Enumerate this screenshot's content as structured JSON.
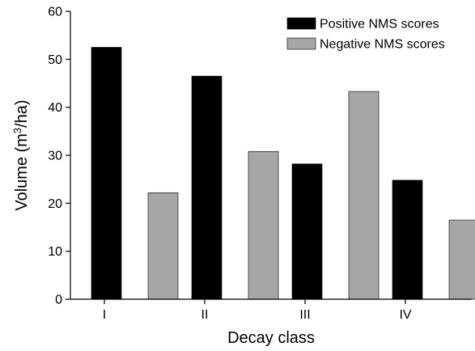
{
  "chart_data": {
    "type": "bar",
    "title": "",
    "xlabel": "Decay class",
    "ylabel_main": "Volume (m",
    "ylabel_sup": "3",
    "ylabel_tail": "/ha)",
    "categories": [
      "I",
      "II",
      "III",
      "IV"
    ],
    "series": [
      {
        "name": "Positive NMS scores",
        "values": [
          52.5,
          46.5,
          28.2,
          24.8
        ],
        "color": "#000000"
      },
      {
        "name": "Negative NMS scores",
        "values": [
          22.2,
          30.8,
          43.3,
          16.5
        ],
        "color": "#a6a6a6"
      }
    ],
    "ylim": [
      0,
      60
    ],
    "yticks": [
      0,
      10,
      20,
      30,
      40,
      50,
      60
    ],
    "grid": false,
    "legend_position": "top-right"
  }
}
